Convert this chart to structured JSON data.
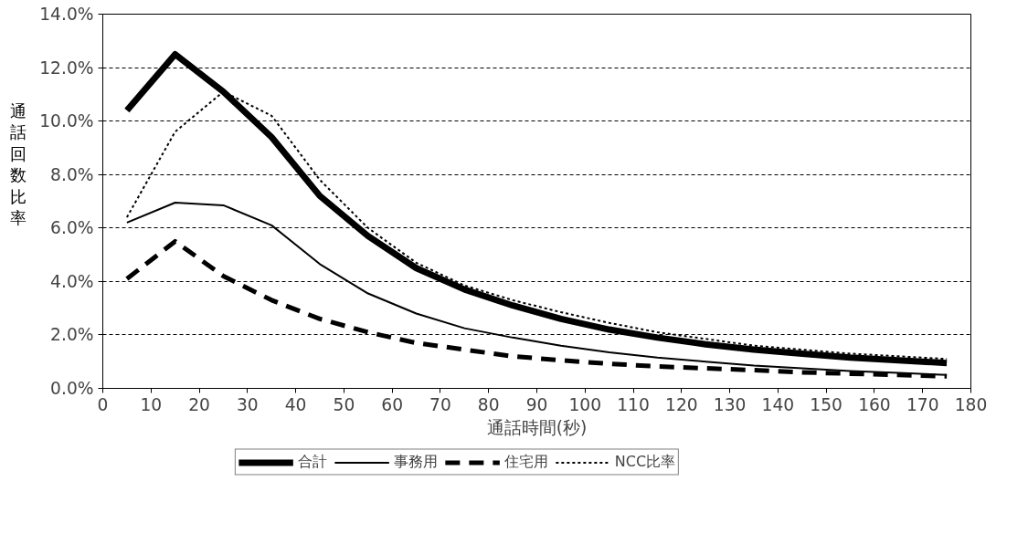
{
  "chart_data": {
    "type": "line",
    "xlabel": "通話時間(秒)",
    "ylabel": "通話回数比率",
    "x": [
      5,
      15,
      25,
      35,
      45,
      55,
      65,
      75,
      85,
      95,
      105,
      115,
      125,
      135,
      145,
      155,
      165,
      175
    ],
    "series": [
      {
        "name": "合計",
        "color": "#000000",
        "line_style": "solid",
        "values": [
          10.4,
          12.5,
          11.1,
          9.4,
          7.2,
          5.7,
          4.5,
          3.7,
          3.1,
          2.6,
          2.2,
          1.9,
          1.65,
          1.45,
          1.3,
          1.15,
          1.05,
          0.95
        ]
      },
      {
        "name": "事務用",
        "color": "#000000",
        "line_style": "solid",
        "values": [
          6.2,
          6.95,
          6.85,
          6.1,
          4.65,
          3.55,
          2.8,
          2.25,
          1.9,
          1.6,
          1.35,
          1.15,
          1.0,
          0.85,
          0.75,
          0.65,
          0.58,
          0.5
        ]
      },
      {
        "name": "住宅用",
        "color": "#000000",
        "line_style": "dashed",
        "values": [
          4.1,
          5.5,
          4.2,
          3.3,
          2.6,
          2.1,
          1.7,
          1.45,
          1.2,
          1.05,
          0.92,
          0.82,
          0.75,
          0.68,
          0.6,
          0.55,
          0.5,
          0.45
        ]
      },
      {
        "name": "NCC比率",
        "color": "#000000",
        "line_style": "dotted",
        "values": [
          6.4,
          9.6,
          11.1,
          10.2,
          7.8,
          6.0,
          4.7,
          3.85,
          3.3,
          2.85,
          2.45,
          2.1,
          1.85,
          1.6,
          1.45,
          1.3,
          1.2,
          1.1
        ]
      }
    ],
    "xlim": [
      0,
      180
    ],
    "xticks": [
      0,
      10,
      20,
      30,
      40,
      50,
      60,
      70,
      80,
      90,
      100,
      110,
      120,
      130,
      140,
      150,
      160,
      170,
      180
    ],
    "ylim": [
      0,
      14
    ],
    "yticks": [
      {
        "value": 0,
        "label": "0.0%"
      },
      {
        "value": 2,
        "label": "2.0%"
      },
      {
        "value": 4,
        "label": "4.0%"
      },
      {
        "value": 6,
        "label": "6.0%"
      },
      {
        "value": 8,
        "label": "8.0%"
      },
      {
        "value": 10,
        "label": "10.0%"
      },
      {
        "value": 12,
        "label": "12.0%"
      },
      {
        "value": 14,
        "label": "14.0%"
      }
    ],
    "grid": "y",
    "legend": "bottom",
    "marker": "none"
  }
}
